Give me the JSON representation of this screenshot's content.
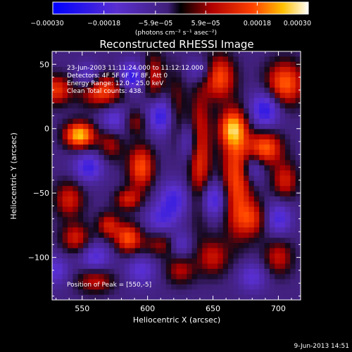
{
  "chart_data": {
    "type": "heatmap",
    "title": "Reconstructed RHESSI Image",
    "xlabel": "Heliocentric X (arcsec)",
    "ylabel": "Heliocentric Y (arcsec)",
    "xlim": [
      527,
      717
    ],
    "ylim": [
      -133,
      60
    ],
    "xticks": [
      550,
      600,
      650,
      700
    ],
    "yticks": [
      50,
      0,
      -50,
      -100
    ],
    "xtick_labels": [
      "550",
      "600",
      "650",
      "700"
    ],
    "ytick_labels": [
      "50",
      "0",
      "−50",
      "−100"
    ],
    "colorbar": {
      "min": -0.0003,
      "max": 0.0003,
      "ticks": [
        -0.0003,
        -0.00018,
        -5.9e-05,
        5.9e-05,
        0.00018,
        0.0003
      ],
      "tick_labels": [
        "−0.00030",
        "−0.00018",
        "−5.9e−05",
        "5.9e−05",
        "0.00018",
        "0.00030"
      ],
      "units": "(photons cm⁻² s⁻¹ asec⁻²)"
    },
    "annotations": [
      "23-Jun-2003 11:11:24.000 to 11:12:12.000",
      "Detectors: 4F 5F 6F 7F 8F, Att 0",
      "Energy Range: 12.0 - 25.0 keV",
      "Clean    Total counts: 438.",
      "Position of Peak = [550,-5]"
    ],
    "peak_position": [
      550,
      -5
    ],
    "blobs": [
      {
        "x": 548,
        "y": -5,
        "sx": 8,
        "sy": 7,
        "v": 1.0
      },
      {
        "x": 565,
        "y": 30,
        "sx": 12,
        "sy": 9,
        "v": 0.7
      },
      {
        "x": 530,
        "y": 30,
        "sx": 8,
        "sy": 8,
        "v": 0.6
      },
      {
        "x": 540,
        "y": -55,
        "sx": 8,
        "sy": 10,
        "v": 0.5
      },
      {
        "x": 572,
        "y": -10,
        "sx": 7,
        "sy": 10,
        "v": 0.45
      },
      {
        "x": 595,
        "y": -30,
        "sx": 7,
        "sy": 12,
        "v": 0.7
      },
      {
        "x": 605,
        "y": 40,
        "sx": 6,
        "sy": 14,
        "v": 0.45
      },
      {
        "x": 590,
        "y": 5,
        "sx": 7,
        "sy": 7,
        "v": 0.4
      },
      {
        "x": 622,
        "y": 15,
        "sx": 5,
        "sy": 20,
        "v": 0.35
      },
      {
        "x": 640,
        "y": -20,
        "sx": 6,
        "sy": 35,
        "v": 0.6
      },
      {
        "x": 655,
        "y": 40,
        "sx": 8,
        "sy": 12,
        "v": 0.7
      },
      {
        "x": 665,
        "y": 0,
        "sx": 7,
        "sy": 10,
        "v": 0.8
      },
      {
        "x": 668,
        "y": -40,
        "sx": 8,
        "sy": 30,
        "v": 0.7
      },
      {
        "x": 690,
        "y": -15,
        "sx": 9,
        "sy": 9,
        "v": 0.75
      },
      {
        "x": 705,
        "y": 35,
        "sx": 10,
        "sy": 12,
        "v": 0.75
      },
      {
        "x": 705,
        "y": -40,
        "sx": 7,
        "sy": 10,
        "v": 0.5
      },
      {
        "x": 700,
        "y": -100,
        "sx": 8,
        "sy": 10,
        "v": 0.45
      },
      {
        "x": 650,
        "y": -100,
        "sx": 8,
        "sy": 10,
        "v": 0.45
      },
      {
        "x": 625,
        "y": -110,
        "sx": 8,
        "sy": 8,
        "v": 0.4
      },
      {
        "x": 585,
        "y": -85,
        "sx": 7,
        "sy": 8,
        "v": 0.7
      },
      {
        "x": 570,
        "y": -75,
        "sx": 6,
        "sy": 7,
        "v": 0.5
      },
      {
        "x": 545,
        "y": -85,
        "sx": 8,
        "sy": 8,
        "v": 0.5
      },
      {
        "x": 560,
        "y": -118,
        "sx": 10,
        "sy": 7,
        "v": 0.45
      },
      {
        "x": 610,
        "y": -90,
        "sx": 10,
        "sy": 7,
        "v": 0.35
      },
      {
        "x": 680,
        "y": -70,
        "sx": 8,
        "sy": 10,
        "v": 0.5
      },
      {
        "x": 585,
        "y": -55,
        "sx": 7,
        "sy": 6,
        "v": 0.5
      },
      {
        "x": 588,
        "y": 40,
        "sx": 7,
        "sy": 8,
        "v": -0.6
      },
      {
        "x": 575,
        "y": 5,
        "sx": 8,
        "sy": 9,
        "v": -0.5
      },
      {
        "x": 555,
        "y": 40,
        "sx": 7,
        "sy": 7,
        "v": -0.45
      },
      {
        "x": 610,
        "y": 10,
        "sx": 8,
        "sy": 10,
        "v": -0.55
      },
      {
        "x": 632,
        "y": -10,
        "sx": 6,
        "sy": 10,
        "v": -0.35
      },
      {
        "x": 650,
        "y": -55,
        "sx": 8,
        "sy": 10,
        "v": -0.55
      },
      {
        "x": 620,
        "y": -55,
        "sx": 8,
        "sy": 10,
        "v": -0.45
      },
      {
        "x": 555,
        "y": -30,
        "sx": 8,
        "sy": 8,
        "v": -0.5
      },
      {
        "x": 560,
        "y": -100,
        "sx": 8,
        "sy": 8,
        "v": -0.4
      },
      {
        "x": 610,
        "y": -70,
        "sx": 8,
        "sy": 8,
        "v": -0.35
      },
      {
        "x": 595,
        "y": -110,
        "sx": 8,
        "sy": 8,
        "v": -0.35
      },
      {
        "x": 690,
        "y": 15,
        "sx": 8,
        "sy": 10,
        "v": -0.6
      },
      {
        "x": 680,
        "y": -30,
        "sx": 6,
        "sy": 8,
        "v": -0.4
      },
      {
        "x": 700,
        "y": -70,
        "sx": 7,
        "sy": 9,
        "v": -0.45
      },
      {
        "x": 680,
        "y": -115,
        "sx": 8,
        "sy": 8,
        "v": -0.35
      },
      {
        "x": 640,
        "y": 45,
        "sx": 7,
        "sy": 7,
        "v": -0.35
      },
      {
        "x": 530,
        "y": -110,
        "sx": 7,
        "sy": 8,
        "v": -0.35
      },
      {
        "x": 625,
        "y": -90,
        "sx": 6,
        "sy": 7,
        "v": -0.35
      }
    ]
  },
  "footer": {
    "timestamp": "9-Jun-2013 14:51"
  }
}
